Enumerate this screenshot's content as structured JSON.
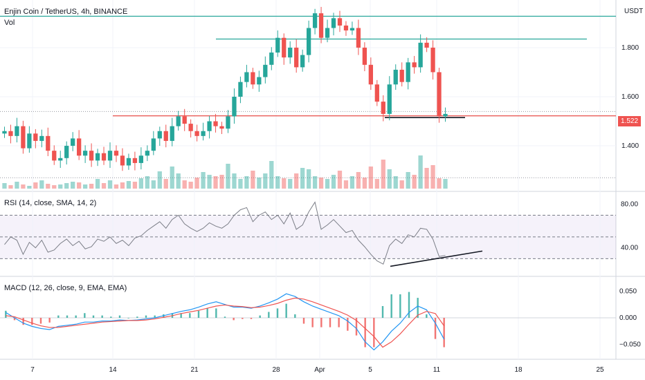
{
  "header": {
    "title": "Enjin Coin / TetherUS, 4h, BINANCE",
    "volume_label": "Vol",
    "currency": "USDT"
  },
  "rsi": {
    "title": "RSI (14, close, SMA, 14, 2)",
    "upper": 70,
    "lower": 30,
    "mid": 50,
    "tick_labels": [
      "80.00",
      "40.00"
    ]
  },
  "macd": {
    "title": "MACD (12, 26, close, 9, EMA, EMA)",
    "tick_labels": [
      "0.050",
      "0.000",
      "−0.050"
    ]
  },
  "last_price": "1.522",
  "colors": {
    "up": "#26a69a",
    "down": "#ef5350",
    "support": "#e53935",
    "resistance": "#26a69a",
    "macd": "#2196f3",
    "signal": "#ef5350"
  },
  "chart_data": {
    "type": "candlestick",
    "price_axis": {
      "ticks": [
        1.4,
        1.6,
        1.8
      ],
      "tick_labels": [
        "1.400",
        "1.600",
        "1.800"
      ],
      "range": [
        1.22,
        1.98
      ]
    },
    "x_axis": {
      "tick_labels": [
        "7",
        "14",
        "21",
        "28",
        "Apr",
        "5",
        "11",
        "18",
        "25"
      ]
    },
    "levels": {
      "upper_resistance": 1.928,
      "mid_resistance": 1.835,
      "support": 1.522
    },
    "rsi_trendline": {
      "start": 23,
      "end": 37
    },
    "price_trendline_y": 1.515,
    "close_path": [
      1.46,
      1.44,
      1.48,
      1.39,
      1.45,
      1.42,
      1.44,
      1.38,
      1.34,
      1.35,
      1.4,
      1.43,
      1.36,
      1.38,
      1.34,
      1.37,
      1.34,
      1.38,
      1.36,
      1.32,
      1.35,
      1.33,
      1.36,
      1.38,
      1.43,
      1.46,
      1.42,
      1.48,
      1.52,
      1.49,
      1.46,
      1.44,
      1.46,
      1.5,
      1.48,
      1.47,
      1.52,
      1.6,
      1.66,
      1.7,
      1.65,
      1.68,
      1.73,
      1.78,
      1.84,
      1.76,
      1.8,
      1.72,
      1.77,
      1.88,
      1.94,
      1.84,
      1.88,
      1.92,
      1.89,
      1.87,
      1.88,
      1.8,
      1.73,
      1.65,
      1.58,
      1.53,
      1.65,
      1.71,
      1.66,
      1.74,
      1.72,
      1.82,
      1.8,
      1.7,
      1.52,
      1.53
    ],
    "rsi_path": [
      43,
      50,
      47,
      34,
      45,
      40,
      47,
      36,
      38,
      44,
      48,
      42,
      46,
      39,
      41,
      48,
      46,
      50,
      44,
      47,
      42,
      49,
      51,
      56,
      60,
      64,
      58,
      66,
      70,
      62,
      58,
      55,
      58,
      63,
      60,
      58,
      62,
      70,
      75,
      77,
      64,
      70,
      73,
      66,
      70,
      62,
      72,
      57,
      61,
      73,
      82,
      57,
      61,
      66,
      60,
      54,
      56,
      47,
      41,
      34,
      28,
      25,
      42,
      48,
      44,
      52,
      50,
      58,
      57,
      48,
      32,
      33
    ],
    "macd_path": [
      0.01,
      0.0,
      -0.01,
      -0.016,
      -0.02,
      -0.022,
      -0.016,
      -0.014,
      -0.012,
      -0.008,
      -0.008,
      -0.006,
      -0.006,
      -0.004,
      -0.005,
      -0.004,
      -0.002,
      0.0,
      0.004,
      0.008,
      0.012,
      0.015,
      0.02,
      0.026,
      0.03,
      0.025,
      0.02,
      0.02,
      0.018,
      0.022,
      0.028,
      0.035,
      0.045,
      0.04,
      0.03,
      0.022,
      0.016,
      0.01,
      0.004,
      -0.006,
      -0.02,
      -0.045,
      -0.06,
      -0.045,
      -0.025,
      -0.01,
      0.01,
      0.022,
      0.015,
      -0.01,
      -0.04
    ],
    "signal_path": [
      0.004,
      0.002,
      -0.004,
      -0.01,
      -0.015,
      -0.018,
      -0.018,
      -0.016,
      -0.014,
      -0.012,
      -0.01,
      -0.008,
      -0.007,
      -0.006,
      -0.005,
      -0.005,
      -0.004,
      -0.002,
      0.001,
      0.004,
      0.008,
      0.011,
      0.014,
      0.018,
      0.022,
      0.024,
      0.022,
      0.021,
      0.019,
      0.02,
      0.023,
      0.027,
      0.033,
      0.037,
      0.035,
      0.03,
      0.024,
      0.018,
      0.012,
      0.005,
      -0.005,
      -0.02,
      -0.035,
      -0.055,
      -0.045,
      -0.03,
      -0.012,
      0.005,
      0.012,
      0.008,
      -0.015
    ],
    "volume_path": [
      8,
      5,
      10,
      6,
      4,
      9,
      12,
      7,
      5,
      6,
      8,
      10,
      9,
      6,
      7,
      14,
      8,
      12,
      6,
      9,
      11,
      10,
      15,
      18,
      12,
      25,
      14,
      32,
      22,
      12,
      10,
      16,
      24,
      20,
      18,
      20,
      36,
      22,
      14,
      18,
      26,
      16,
      22,
      40,
      18,
      15,
      14,
      22,
      30,
      28,
      18,
      16,
      14,
      20,
      26,
      12,
      18,
      24,
      16,
      32,
      14,
      42,
      28,
      18,
      12,
      24,
      20,
      48,
      30,
      34,
      15,
      14
    ]
  }
}
